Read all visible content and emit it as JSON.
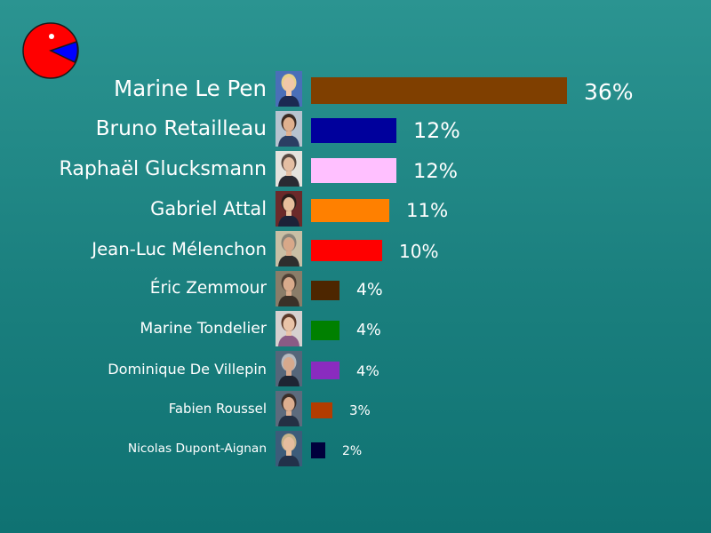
{
  "chart_data": {
    "type": "bar",
    "orientation": "horizontal",
    "categories": [
      "Marine Le Pen",
      "Bruno Retailleau",
      "Raphaël Glucksmann",
      "Gabriel Attal",
      "Jean-Luc Mélenchon",
      "Éric Zemmour",
      "Marine Tondelier",
      "Dominique De Villepin",
      "Fabien Roussel",
      "Nicolas Dupont-Aignan"
    ],
    "values": [
      36,
      12,
      12,
      11,
      10,
      4,
      4,
      4,
      3,
      2
    ],
    "value_labels": [
      "36%",
      "12%",
      "12%",
      "11%",
      "10%",
      "4%",
      "4%",
      "4%",
      "3%",
      "2%"
    ],
    "colors": [
      "#7f3f00",
      "#00009c",
      "#ffc0ff",
      "#ff8000",
      "#ff0000",
      "#4d2600",
      "#008000",
      "#8a2bbf",
      "#b33c00",
      "#00003c"
    ],
    "photos": [
      "portrait-marine-le-pen",
      "portrait-bruno-retailleau",
      "portrait-raphael-glucksmann",
      "portrait-gabriel-attal",
      "portrait-jean-luc-melenchon",
      "portrait-eric-zemmour",
      "portrait-marine-tondelier",
      "portrait-dominique-de-villepin",
      "portrait-fabien-roussel",
      "portrait-nicolas-dupont-aignan"
    ],
    "title": "",
    "xlabel": "",
    "ylabel": "",
    "xlim": [
      0,
      36
    ],
    "grid": false,
    "legend": "none"
  },
  "logo": {
    "icon": "pacman-logo-icon",
    "colors": {
      "body": "#ff0000",
      "mouth": "#0000ff",
      "eye": "#ffffff"
    }
  }
}
